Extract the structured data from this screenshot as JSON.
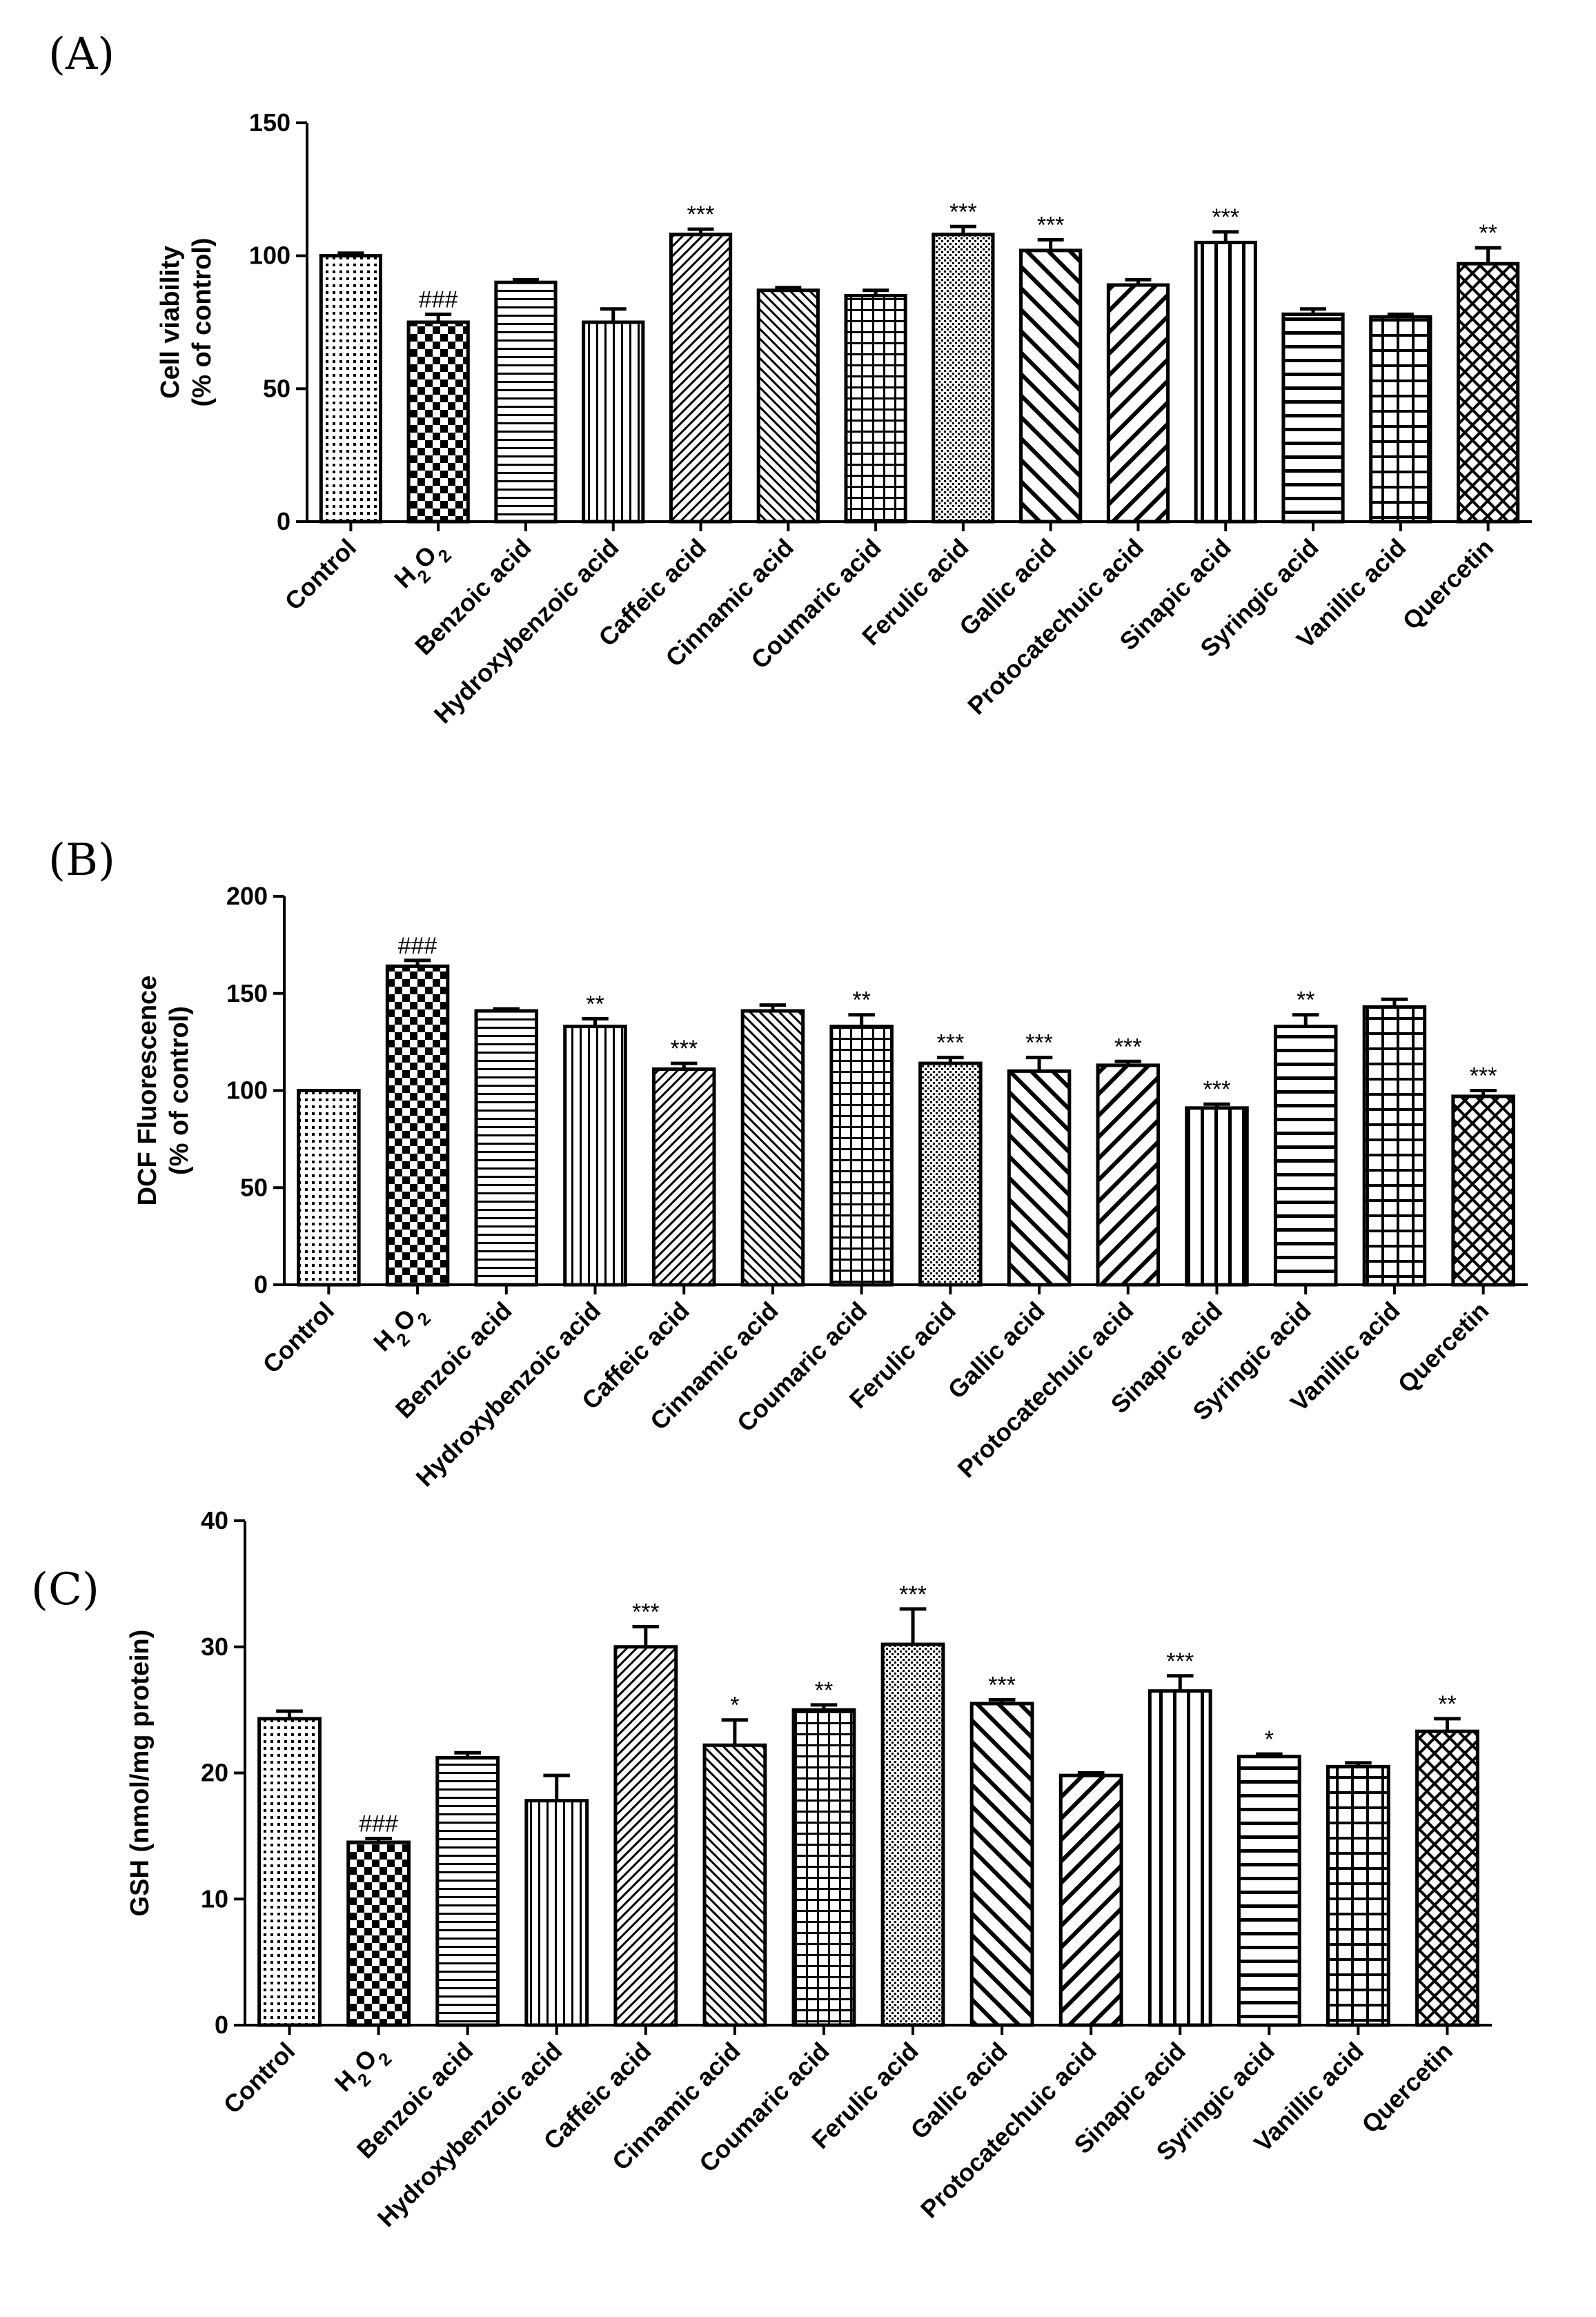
{
  "chart_data": [
    {
      "panel_label": "(A)",
      "type": "bar",
      "ylabel": "Cell viability (% of control)",
      "ylabel_lines": [
        "Cell viability",
        "(% of control)"
      ],
      "ylim": [
        0,
        150
      ],
      "yticks": [
        0,
        50,
        100,
        150
      ],
      "categories": [
        "Control",
        "H2O2",
        "Benzoic acid",
        "Hydroxybenzoic acid",
        "Caffeic acid",
        "Cinnamic acid",
        "Coumaric acid",
        "Ferulic acid",
        "Gallic acid",
        "Protocatechuic acid",
        "Sinapic acid",
        "Syringic acid",
        "Vanillic acid",
        "Quercetin"
      ],
      "values": [
        100,
        75,
        90,
        75,
        108,
        87,
        85,
        108,
        102,
        89,
        105,
        78,
        77,
        97
      ],
      "errors": [
        1,
        3,
        1,
        5,
        2,
        1,
        2,
        3,
        4,
        2,
        4,
        2,
        1,
        6
      ],
      "significance": [
        "",
        "###",
        "",
        "",
        "***",
        "",
        "",
        "***",
        "***",
        "",
        "***",
        "",
        "",
        "**"
      ],
      "fills": [
        "dots",
        "checker",
        "hlines",
        "vlines",
        "diag-fine",
        "diag-back",
        "grid",
        "dense-dots",
        "diag-back-wide",
        "diag-wide",
        "vlines-wide",
        "hlines-wide",
        "grid-wide",
        "crosshatch"
      ]
    },
    {
      "panel_label": "(B)",
      "type": "bar",
      "ylabel": "DCF Fluorescence (% of control)",
      "ylabel_lines": [
        "DCF Fluorescence",
        "(% of control)"
      ],
      "ylim": [
        0,
        200
      ],
      "yticks": [
        0,
        50,
        100,
        150,
        200
      ],
      "categories": [
        "Control",
        "H2O2",
        "Benzoic acid",
        "Hydroxybenzoic acid",
        "Caffeic acid",
        "Cinnamic acid",
        "Coumaric acid",
        "Ferulic acid",
        "Gallic acid",
        "Protocatechuic acid",
        "Sinapic acid",
        "Syringic acid",
        "Vanillic acid",
        "Quercetin"
      ],
      "category_labels": [
        "Control",
        "H2O2",
        "Benzoic acid",
        "Hydroxybenzoic acid",
        "Caffeic acid",
        "Cinnamic acid",
        "Coumaric acid",
        "Ferulic acid",
        "Gallic acid",
        "Protocatechuic acid",
        "Sinapic acid",
        "Syringic acid",
        "Vanillic acid",
        "Quercetin"
      ],
      "values": [
        100,
        164,
        141,
        133,
        111,
        141,
        133,
        114,
        110,
        113,
        91,
        133,
        143,
        97
      ],
      "errors": [
        0,
        3,
        1,
        4,
        3,
        3,
        6,
        3,
        7,
        2,
        2,
        6,
        4,
        3
      ],
      "significance": [
        "",
        "###",
        "",
        "**",
        "***",
        "",
        "**",
        "***",
        "***",
        "***",
        "***",
        "**",
        "",
        "***"
      ],
      "fills": [
        "dots",
        "checker",
        "hlines",
        "vlines",
        "diag-fine",
        "diag-back",
        "grid",
        "dense-dots",
        "diag-back-wide",
        "diag-wide",
        "vlines-wide",
        "hlines-wide",
        "grid-wide",
        "crosshatch"
      ]
    },
    {
      "panel_label": "(C)",
      "type": "bar",
      "ylabel": "GSH (nmol/mg protein)",
      "ylabel_lines": [
        "GSH (nmol/mg protein)"
      ],
      "ylim": [
        0,
        40
      ],
      "yticks": [
        0,
        10,
        20,
        30,
        40
      ],
      "categories": [
        "Control",
        "H2O2",
        "Benzoic acid",
        "Hydroxybenzoic acid",
        "Caffeic acid",
        "Cinnamic acid",
        "Coumaric acid",
        "Ferulic acid",
        "Gallic acid",
        "Protocatechuic acid",
        "Sinapic acid",
        "Syringic acid",
        "Vanillic acid",
        "Quercetin"
      ],
      "values": [
        24.3,
        14.5,
        21.2,
        17.8,
        30.0,
        22.2,
        25.0,
        30.2,
        25.5,
        19.8,
        26.5,
        21.3,
        20.5,
        23.3
      ],
      "errors": [
        0.6,
        0.3,
        0.4,
        2.0,
        1.6,
        2.0,
        0.4,
        2.8,
        0.3,
        0.2,
        1.2,
        0.2,
        0.3,
        1.0
      ],
      "significance": [
        "",
        "###",
        "",
        "",
        "***",
        "*",
        "**",
        "***",
        "***",
        "",
        "***",
        "*",
        "",
        "**"
      ],
      "fills": [
        "dots",
        "checker",
        "hlines",
        "vlines",
        "diag-fine",
        "diag-back",
        "grid",
        "dense-dots",
        "diag-back-wide",
        "diag-wide",
        "vlines-wide",
        "hlines-wide",
        "grid-wide",
        "crosshatch"
      ]
    }
  ]
}
